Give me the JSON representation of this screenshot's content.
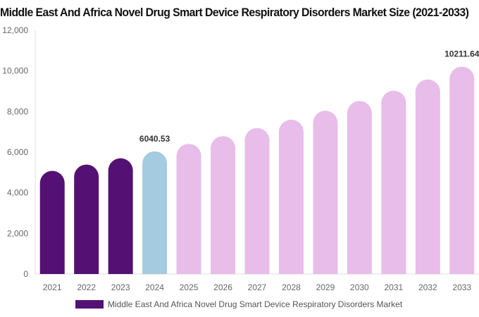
{
  "chart_data": {
    "type": "bar",
    "title": "Middle East And Africa Novel Drug Smart Device Respiratory Disorders Market Size (2021-2033)",
    "categories": [
      "2021",
      "2022",
      "2023",
      "2024",
      "2025",
      "2026",
      "2027",
      "2028",
      "2029",
      "2030",
      "2031",
      "2032",
      "2033"
    ],
    "series": [
      {
        "name": "Middle East And Africa Novel Drug Smart Device Respiratory Disorders Market",
        "values": [
          5080,
          5390,
          5700,
          6040.53,
          6410,
          6790,
          7190,
          7600,
          8040,
          8520,
          9030,
          9580,
          10211.64
        ]
      }
    ],
    "data_labels": {
      "3": "6040.53",
      "12": "10211.64"
    },
    "ylim": [
      0,
      12000
    ],
    "yticks": [
      "0",
      "2,000",
      "4,000",
      "6,000",
      "8,000",
      "10,000",
      "12,000"
    ],
    "grid": false,
    "legend_position": "bottom",
    "colors": {
      "historical": "#541173",
      "base_year": "#a4cbdf",
      "forecast": "#e8bde9"
    }
  }
}
